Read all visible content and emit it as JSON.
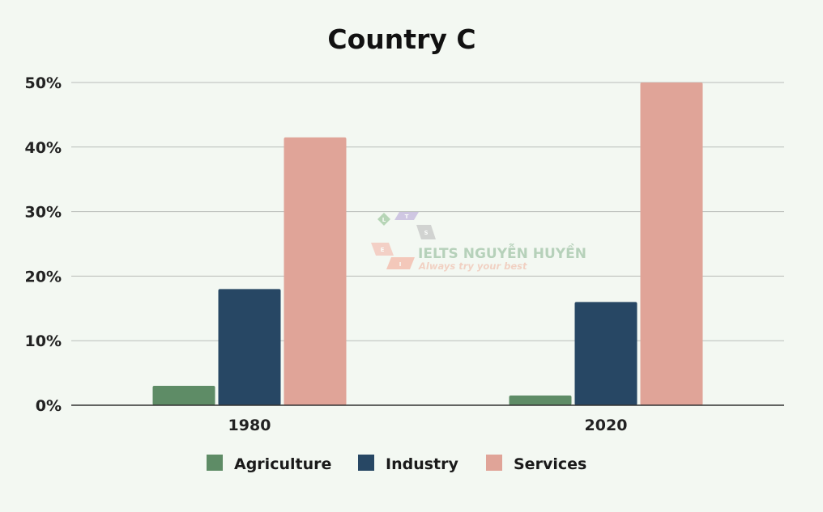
{
  "chart_data": {
    "type": "bar",
    "title": "Country C",
    "categories": [
      "1980",
      "2020"
    ],
    "series": [
      {
        "name": "Agriculture",
        "color": "#5e8c66",
        "values": [
          3,
          1.5
        ]
      },
      {
        "name": "Industry",
        "color": "#274764",
        "values": [
          18,
          16
        ]
      },
      {
        "name": "Services",
        "color": "#e0a498",
        "values": [
          41.5,
          50
        ]
      }
    ],
    "ylim": [
      0,
      50
    ],
    "yticks": [
      "0%",
      "10%",
      "20%",
      "30%",
      "40%",
      "50%"
    ],
    "xlabel": "",
    "ylabel": "",
    "grid": true,
    "legend_position": "bottom"
  },
  "watermark": {
    "brand": "IELTS NGUYỄN HUYỀN",
    "slogan": "Always try your best",
    "letters": [
      "L",
      "T",
      "S",
      "E",
      "I"
    ]
  }
}
